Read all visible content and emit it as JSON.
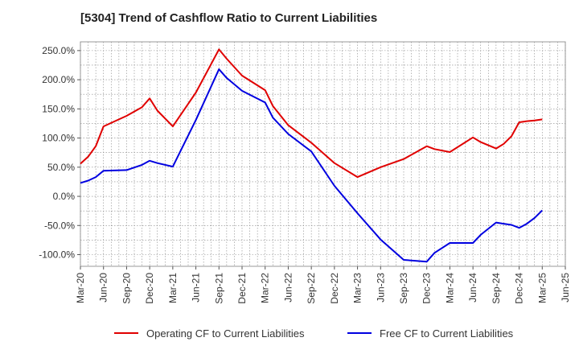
{
  "chart_data": {
    "type": "line",
    "title": "[5304]  Trend of Cashflow Ratio to Current Liabilities",
    "xlabel": "",
    "ylabel": "",
    "ylim": [
      -120,
      265
    ],
    "yticks": [
      -100,
      -50,
      0,
      50,
      100,
      150,
      200,
      250
    ],
    "ytick_labels": [
      "-100.0%",
      "-50.0%",
      "0.0%",
      "50.0%",
      "100.0%",
      "150.0%",
      "200.0%",
      "250.0%"
    ],
    "xticks": [
      "Mar-20",
      "Jun-20",
      "Sep-20",
      "Dec-20",
      "Mar-21",
      "Jun-21",
      "Sep-21",
      "Dec-21",
      "Mar-22",
      "Jun-22",
      "Sep-22",
      "Dec-22",
      "Mar-23",
      "Jun-23",
      "Sep-23",
      "Dec-23",
      "Mar-24",
      "Jun-24",
      "Sep-24",
      "Dec-24",
      "Mar-25",
      "Jun-25"
    ],
    "grid": true,
    "legend_position": "bottom",
    "x": [
      "Mar-20",
      "Apr-20",
      "May-20",
      "Jun-20",
      "Sep-20",
      "Nov-20",
      "Dec-20",
      "Jan-21",
      "Mar-21",
      "Jun-21",
      "Sep-21",
      "Oct-21",
      "Dec-21",
      "Mar-22",
      "Apr-22",
      "Jun-22",
      "Sep-22",
      "Dec-22",
      "Mar-23",
      "Jun-23",
      "Sep-23",
      "Dec-23",
      "Jan-24",
      "Mar-24",
      "Jun-24",
      "Jul-24",
      "Sep-24",
      "Oct-24",
      "Nov-24",
      "Dec-24",
      "Jan-25",
      "Feb-25",
      "Mar-25"
    ],
    "series": [
      {
        "name": "Operating CF to Current Liabilities",
        "color": "#e00000",
        "values": [
          56,
          68,
          86,
          120,
          138,
          153,
          168,
          147,
          120,
          178,
          252,
          236,
          207,
          182,
          155,
          122,
          92,
          57,
          33,
          50,
          64,
          86,
          81,
          76,
          101,
          93,
          82,
          90,
          103,
          127,
          129,
          130,
          132
        ]
      },
      {
        "name": "Free CF to Current Liabilities",
        "color": "#0000e0",
        "values": [
          23,
          27,
          33,
          44,
          45,
          54,
          61,
          57,
          51,
          131,
          218,
          203,
          181,
          161,
          135,
          107,
          77,
          18,
          -29,
          -74,
          -109,
          -112,
          -97,
          -80,
          -80,
          -66,
          -45,
          -47,
          -49,
          -54,
          -47,
          -37,
          -24
        ]
      }
    ]
  }
}
